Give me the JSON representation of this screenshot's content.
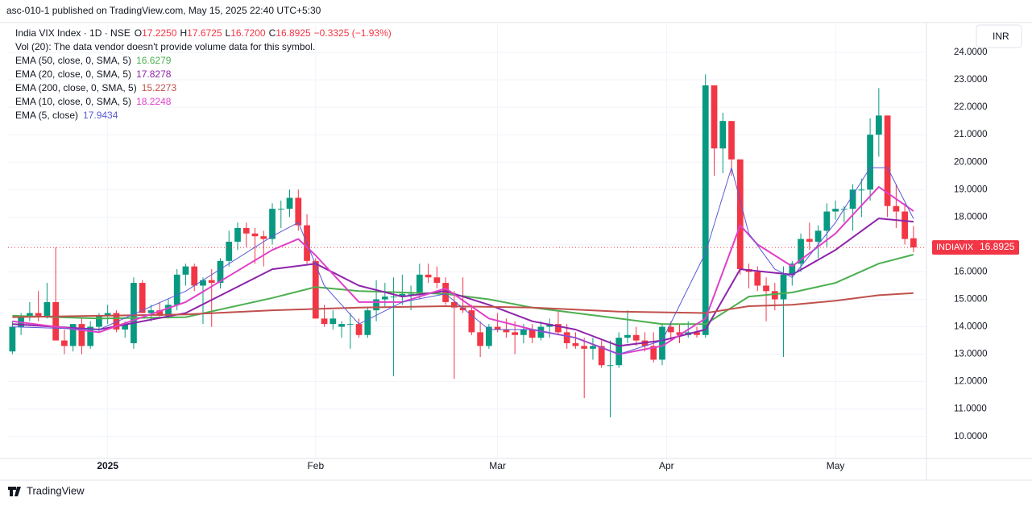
{
  "header": {
    "published": "asc-010-1 published on TradingView.com, May 15, 2025 22:40 UTC+5:30",
    "footer": "TradingView",
    "currency": "INR"
  },
  "chart_data": {
    "type": "candlestick",
    "title": "India VIX Index · 1D · NSE",
    "ohlc_legend": [
      {
        "label": "O",
        "value": "17.2250"
      },
      {
        "label": "H",
        "value": "17.6725"
      },
      {
        "label": "L",
        "value": "16.7200"
      },
      {
        "label": "C",
        "value": "16.8925"
      }
    ],
    "change": "−0.3325 (−1.93%)",
    "volume_note": "Vol (20): The data vendor doesn't provide volume data for this symbol.",
    "up_color": "#089981",
    "down_color": "#f23645",
    "candles": {
      "open": [
        13.1,
        14.0,
        14.4,
        14.5,
        14.4,
        14.9,
        13.5,
        13.3,
        14.1,
        13.3,
        14.0,
        14.4,
        14.5,
        13.9,
        13.4,
        15.6,
        14.5,
        14.6,
        14.4,
        14.8,
        15.9,
        16.2,
        15.5,
        15.7,
        15.6,
        16.4,
        17.1,
        17.6,
        17.4,
        17.3,
        17.2,
        18.3,
        18.3,
        18.7,
        17.7,
        16.4,
        14.3,
        14.1,
        14.0,
        14.1,
        14.1,
        13.7,
        14.6,
        15.0,
        15.1,
        15.1,
        15.2,
        15.2,
        15.9,
        15.8,
        15.6,
        14.9,
        14.7,
        14.6,
        13.8,
        13.3,
        14.0,
        13.9,
        13.8,
        13.7,
        13.9,
        13.6,
        14.0,
        14.1,
        13.8,
        13.4,
        13.3,
        13.2,
        13.3,
        12.6,
        12.6,
        13.6,
        13.7,
        13.5,
        13.3,
        12.8,
        14.0,
        13.8,
        13.7,
        13.8,
        13.7,
        22.8,
        20.5,
        21.5,
        20.1,
        16.1,
        16.0,
        15.5,
        15.3,
        15.0,
        15.9,
        16.3,
        17.2,
        17.1,
        17.5,
        18.2,
        18.3,
        18.3,
        19.0,
        19.0,
        21.0,
        21.7,
        18.4,
        18.2,
        17.225
      ],
      "high": [
        14.2,
        14.5,
        14.9,
        15.3,
        15.6,
        16.9,
        13.9,
        14.1,
        14.3,
        14.2,
        14.5,
        14.8,
        14.6,
        14.2,
        15.8,
        15.7,
        14.8,
        14.9,
        15.0,
        16.1,
        16.3,
        16.3,
        15.8,
        16.1,
        16.5,
        17.5,
        17.8,
        17.8,
        17.6,
        17.5,
        18.5,
        18.6,
        19.0,
        19.0,
        18.1,
        16.5,
        14.8,
        14.6,
        14.2,
        14.5,
        14.3,
        14.7,
        15.7,
        15.6,
        15.8,
        15.9,
        15.5,
        16.3,
        16.3,
        16.2,
        15.8,
        15.3,
        15.8,
        14.8,
        14.2,
        14.1,
        14.5,
        14.3,
        14.2,
        14.1,
        14.1,
        14.2,
        14.3,
        14.6,
        14.1,
        13.8,
        13.6,
        13.6,
        13.5,
        13.5,
        13.8,
        14.6,
        14.0,
        13.8,
        13.8,
        14.1,
        14.2,
        14.1,
        14.2,
        14.0,
        23.2,
        22.8,
        21.8,
        21.5,
        20.1,
        16.3,
        16.2,
        15.8,
        15.6,
        16.2,
        16.4,
        17.4,
        17.8,
        17.7,
        18.5,
        18.6,
        18.4,
        19.2,
        19.4,
        21.6,
        22.7,
        21.7,
        19.2,
        18.5,
        17.6725
      ],
      "low": [
        13.0,
        13.7,
        14.2,
        14.2,
        14.3,
        13.6,
        13.0,
        13.1,
        13.0,
        13.2,
        13.8,
        14.1,
        13.8,
        13.6,
        13.2,
        14.5,
        14.2,
        14.3,
        14.3,
        14.6,
        15.5,
        15.3,
        14.1,
        14.0,
        15.4,
        16.2,
        16.8,
        16.9,
        16.3,
        16.2,
        17.0,
        17.6,
        18.0,
        17.5,
        16.3,
        14.3,
        14.0,
        13.9,
        13.6,
        13.2,
        13.6,
        13.6,
        14.2,
        14.7,
        12.2,
        14.8,
        14.6,
        15.0,
        15.6,
        15.4,
        14.8,
        12.1,
        14.5,
        13.7,
        12.9,
        13.2,
        13.8,
        13.6,
        13.0,
        13.4,
        13.4,
        13.5,
        13.6,
        13.7,
        13.2,
        13.2,
        11.4,
        12.8,
        12.5,
        10.7,
        12.5,
        13.4,
        13.3,
        13.1,
        12.7,
        12.6,
        13.5,
        13.4,
        13.6,
        13.6,
        13.6,
        19.5,
        19.6,
        19.5,
        15.9,
        15.4,
        15.3,
        14.2,
        14.6,
        12.9,
        15.5,
        16.0,
        16.8,
        16.5,
        16.9,
        17.9,
        17.8,
        17.5,
        18.0,
        18.6,
        20.2,
        18.0,
        17.6,
        17.0,
        16.72
      ],
      "close": [
        14.0,
        14.4,
        14.5,
        14.4,
        14.9,
        13.5,
        13.3,
        14.1,
        13.3,
        14.0,
        14.4,
        14.5,
        13.9,
        14.1,
        15.6,
        14.5,
        14.6,
        14.4,
        14.8,
        15.9,
        16.2,
        15.5,
        15.7,
        15.6,
        16.4,
        17.1,
        17.6,
        17.4,
        17.3,
        17.2,
        18.3,
        18.3,
        18.7,
        17.7,
        16.4,
        14.3,
        14.1,
        14.3,
        14.1,
        14.1,
        13.7,
        14.6,
        15.0,
        15.1,
        15.1,
        15.2,
        15.2,
        15.9,
        15.8,
        15.6,
        14.9,
        14.7,
        14.6,
        13.8,
        13.3,
        14.0,
        13.9,
        13.8,
        13.7,
        13.9,
        13.6,
        14.0,
        14.1,
        13.8,
        13.4,
        13.3,
        13.2,
        13.3,
        12.6,
        12.6,
        13.6,
        13.7,
        13.5,
        13.3,
        12.8,
        14.0,
        13.8,
        13.7,
        13.8,
        13.7,
        22.8,
        20.5,
        21.5,
        20.1,
        16.1,
        16.0,
        15.5,
        15.3,
        15.0,
        15.9,
        16.3,
        17.2,
        17.1,
        17.5,
        18.2,
        18.3,
        18.3,
        19.0,
        19.0,
        21.0,
        21.7,
        18.4,
        18.2,
        17.2,
        16.8925
      ]
    },
    "last_price": {
      "symbol": "INDIAVIX",
      "label": "16.8925",
      "color": "#f23645"
    },
    "series": [
      {
        "name": "EMA (50, close, 0, SMA, 5)",
        "last_label": "16.6279",
        "color": "#4caf50",
        "x": [
          0,
          10,
          20,
          30,
          35,
          40,
          50,
          55,
          60,
          70,
          75,
          80,
          85,
          90,
          95,
          100,
          104
        ],
        "values": [
          14.4,
          14.3,
          14.35,
          15.05,
          15.45,
          15.3,
          15.2,
          15.0,
          14.7,
          14.3,
          14.1,
          14.1,
          15.1,
          15.25,
          15.6,
          16.3,
          16.63
        ]
      },
      {
        "name": "EMA (20, close, 0, SMA, 5)",
        "last_label": "17.8278",
        "color": "#8e24aa",
        "x": [
          0,
          10,
          20,
          30,
          35,
          40,
          45,
          50,
          55,
          60,
          65,
          70,
          75,
          80,
          84,
          90,
          95,
          100,
          104
        ],
        "values": [
          14.1,
          13.9,
          14.5,
          16.1,
          16.3,
          15.5,
          15.1,
          15.3,
          14.8,
          14.2,
          13.9,
          13.3,
          13.5,
          13.9,
          16.1,
          15.9,
          16.8,
          17.95,
          17.83
        ]
      },
      {
        "name": "EMA (200, close, 0, SMA, 5)",
        "last_label": "15.2273",
        "color": "#c0504d",
        "x": [
          0,
          10,
          20,
          30,
          40,
          50,
          60,
          70,
          80,
          85,
          90,
          95,
          100,
          104
        ],
        "values": [
          14.35,
          14.4,
          14.45,
          14.6,
          14.7,
          14.75,
          14.7,
          14.55,
          14.5,
          14.75,
          14.8,
          14.95,
          15.15,
          15.23
        ]
      },
      {
        "name": "EMA (10, close, 0, SMA, 5)",
        "last_label": "18.2248",
        "color": "#e040c8",
        "x": [
          0,
          10,
          20,
          30,
          33,
          35,
          40,
          45,
          50,
          55,
          60,
          65,
          70,
          75,
          80,
          84,
          86,
          90,
          95,
          100,
          104
        ],
        "values": [
          14.2,
          13.8,
          14.9,
          16.8,
          17.2,
          16.6,
          14.9,
          14.9,
          15.4,
          14.3,
          13.9,
          13.6,
          13.0,
          13.3,
          14.3,
          17.7,
          17.0,
          16.2,
          17.4,
          19.1,
          18.22
        ]
      },
      {
        "name": "EMA (5, close)",
        "last_label": "17.9434",
        "color": "#5b5bd6",
        "x": [
          0,
          10,
          20,
          30,
          33,
          36,
          40,
          45,
          50,
          55,
          60,
          65,
          70,
          75,
          80,
          83,
          85,
          88,
          90,
          95,
          99,
          101,
          104
        ],
        "values": [
          14.0,
          13.9,
          15.3,
          17.3,
          17.8,
          15.5,
          14.1,
          14.9,
          15.2,
          13.9,
          13.9,
          13.6,
          13.0,
          13.5,
          16.7,
          19.8,
          17.4,
          16.1,
          15.8,
          17.8,
          19.8,
          19.8,
          17.94
        ]
      }
    ],
    "xlim": [
      -0.5,
      105.5
    ],
    "xticks": [
      {
        "value": 11,
        "label": "2025"
      },
      {
        "value": 35,
        "label": "Feb"
      },
      {
        "value": 56,
        "label": "Mar"
      },
      {
        "value": 75.5,
        "label": "Apr"
      },
      {
        "value": 95,
        "label": "May"
      }
    ],
    "ylim": [
      9.2,
      25
    ],
    "yticks": [
      {
        "value": 10,
        "label": "10.0000"
      },
      {
        "value": 11,
        "label": "11.0000"
      },
      {
        "value": 12,
        "label": "12.0000"
      },
      {
        "value": 13,
        "label": "13.0000"
      },
      {
        "value": 14,
        "label": "14.0000"
      },
      {
        "value": 15,
        "label": "15.0000"
      },
      {
        "value": 16,
        "label": "16.0000"
      },
      {
        "value": 17,
        "label": "17.0000"
      },
      {
        "value": 18,
        "label": "18.0000"
      },
      {
        "value": 19,
        "label": "19.0000"
      },
      {
        "value": 20,
        "label": "20.0000"
      },
      {
        "value": 21,
        "label": "21.0000"
      },
      {
        "value": 22,
        "label": "22.0000"
      },
      {
        "value": 23,
        "label": "23.0000"
      },
      {
        "value": 24,
        "label": "24.0000"
      }
    ],
    "grid": true
  }
}
